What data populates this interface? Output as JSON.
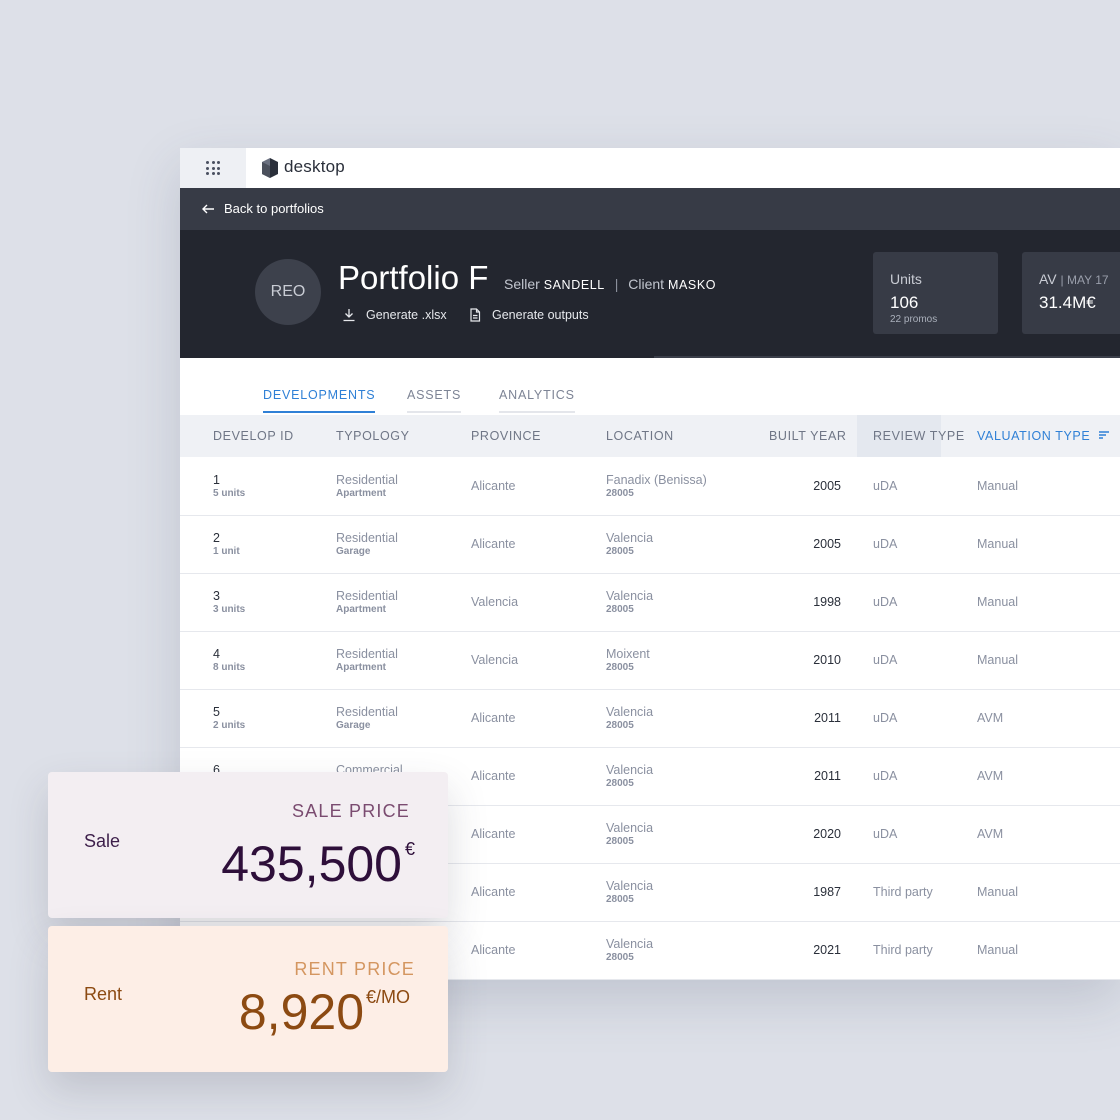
{
  "app": {
    "brand": "desktop"
  },
  "nav": {
    "back_label": "Back to portfolios"
  },
  "portfolio": {
    "avatar": "REO",
    "title": "Portfolio F",
    "seller_label": "Seller",
    "seller": "SANDELL",
    "client_label": "Client",
    "client": "MASKO",
    "actions": {
      "generate_xlsx": "Generate .xlsx",
      "generate_outputs": "Generate outputs"
    }
  },
  "stats": {
    "units": {
      "label": "Units",
      "value": "106",
      "sub": "22 promos"
    },
    "av": {
      "label": "AV",
      "date": "| MAY 17",
      "value": "31.4M€"
    }
  },
  "tabs": [
    "DEVELOPMENTS",
    "ASSETS",
    "ANALYTICS"
  ],
  "table": {
    "columns": [
      "DEVELOP ID",
      "TYPOLOGY",
      "PROVINCE",
      "LOCATION",
      "BUILT YEAR",
      "REVIEW TYPE",
      "VALUATION TYPE"
    ],
    "rows": [
      {
        "id": "1",
        "units": "5 units",
        "typology": "Residential",
        "subtype": "Apartment",
        "province": "Alicante",
        "location": "Fanadix (Benissa)",
        "postcode": "28005",
        "year": "2005",
        "review": "uDA",
        "valuation": "Manual"
      },
      {
        "id": "2",
        "units": "1 unit",
        "typology": "Residential",
        "subtype": "Garage",
        "province": "Alicante",
        "location": "Valencia",
        "postcode": "28005",
        "year": "2005",
        "review": "uDA",
        "valuation": "Manual"
      },
      {
        "id": "3",
        "units": "3 units",
        "typology": "Residential",
        "subtype": "Apartment",
        "province": "Valencia",
        "location": "Valencia",
        "postcode": "28005",
        "year": "1998",
        "review": "uDA",
        "valuation": "Manual"
      },
      {
        "id": "4",
        "units": "8 units",
        "typology": "Residential",
        "subtype": "Apartment",
        "province": "Valencia",
        "location": "Moixent",
        "postcode": "28005",
        "year": "2010",
        "review": "uDA",
        "valuation": "Manual"
      },
      {
        "id": "5",
        "units": "2 units",
        "typology": "Residential",
        "subtype": "Garage",
        "province": "Alicante",
        "location": "Valencia",
        "postcode": "28005",
        "year": "2011",
        "review": "uDA",
        "valuation": "AVM"
      },
      {
        "id": "6",
        "units": "",
        "typology": "Commercial",
        "subtype": "",
        "province": "Alicante",
        "location": "Valencia",
        "postcode": "28005",
        "year": "2011",
        "review": "uDA",
        "valuation": "AVM"
      },
      {
        "id": "",
        "units": "",
        "typology": "",
        "subtype": "",
        "province": "Alicante",
        "location": "Valencia",
        "postcode": "28005",
        "year": "2020",
        "review": "uDA",
        "valuation": "AVM"
      },
      {
        "id": "",
        "units": "",
        "typology": "",
        "subtype": "",
        "province": "Alicante",
        "location": "Valencia",
        "postcode": "28005",
        "year": "1987",
        "review": "Third party",
        "valuation": "Manual"
      },
      {
        "id": "",
        "units": "",
        "typology": "",
        "subtype": "",
        "province": "Alicante",
        "location": "Valencia",
        "postcode": "28005",
        "year": "2021",
        "review": "Third party",
        "valuation": "Manual"
      }
    ]
  },
  "cards": {
    "sale": {
      "label": "Sale",
      "title": "SALE PRICE",
      "amount": "435,500",
      "unit": "€"
    },
    "rent": {
      "label": "Rent",
      "title": "RENT PRICE",
      "amount": "8,920",
      "unit": "€/MO"
    }
  },
  "colors": {
    "accent": "#2f80d6",
    "header_bg": "#23262f",
    "sale_text": "#2e0f3a",
    "sale_title": "#7a4b70",
    "rent_text": "#8c4a12",
    "rent_title": "#d49660"
  },
  "icons": [
    "apps-grid-icon",
    "logo-icon",
    "back-arrow-icon",
    "download-icon",
    "document-icon",
    "sort-icon"
  ]
}
